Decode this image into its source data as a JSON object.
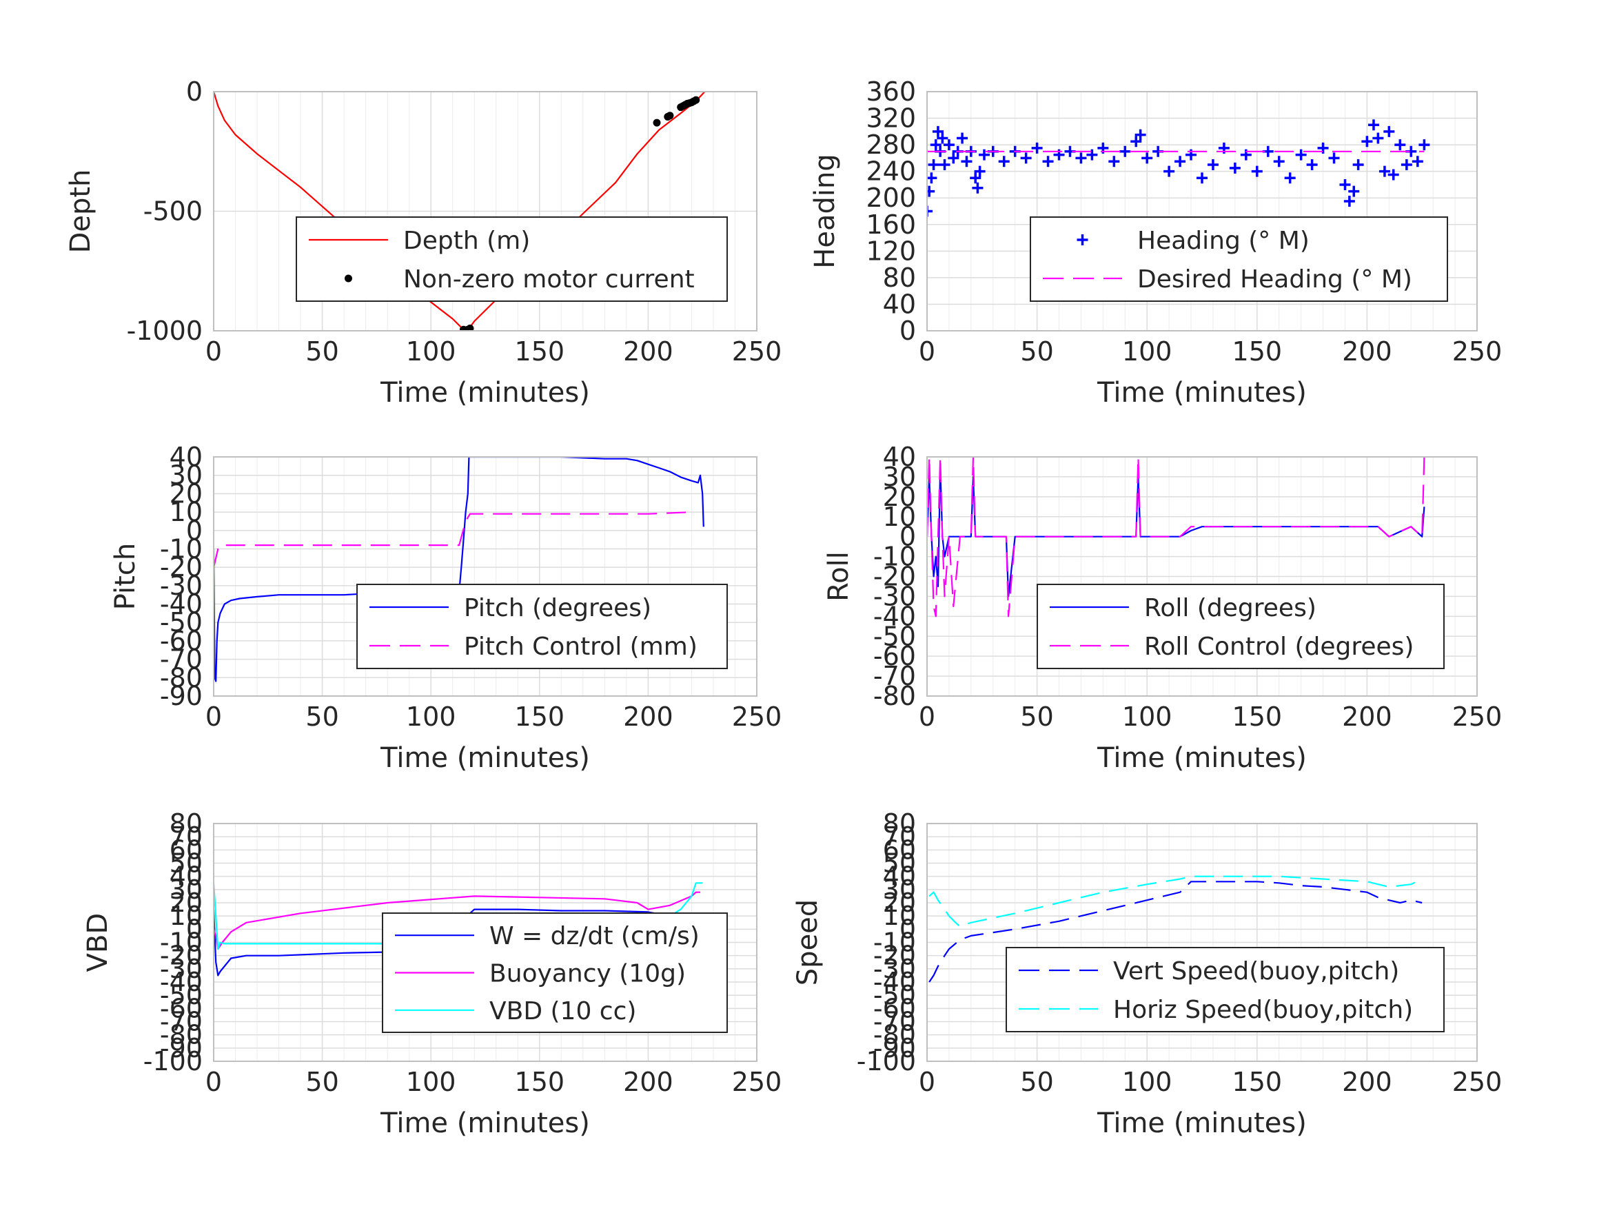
{
  "chart_data": [
    {
      "id": "depth",
      "type": "line",
      "xlabel": "Time (minutes)",
      "ylabel": "Depth",
      "xlim": [
        0,
        250
      ],
      "ylim": [
        -1000,
        0
      ],
      "xticks": [
        "0",
        "50",
        "100",
        "150",
        "200",
        "250"
      ],
      "yticks": [
        "-1000",
        "-500",
        "0"
      ],
      "grid": true,
      "legend": "lower-right",
      "series": [
        {
          "name": "Depth (m)",
          "style": "solid",
          "color": "#ff0000",
          "x": [
            0,
            2,
            5,
            10,
            20,
            40,
            60,
            80,
            100,
            110,
            115,
            118,
            120,
            130,
            150,
            170,
            185,
            195,
            205,
            215,
            222,
            226
          ],
          "y": [
            0,
            -60,
            -120,
            -180,
            -260,
            -400,
            -560,
            -720,
            -880,
            -950,
            -995,
            -985,
            -960,
            -870,
            -690,
            -510,
            -380,
            -260,
            -160,
            -90,
            -40,
            0
          ]
        },
        {
          "name": "Non-zero motor current",
          "style": "dots",
          "color": "#000000",
          "x": [
            115,
            116,
            117,
            118,
            204,
            209,
            210,
            215,
            216,
            217,
            218,
            219,
            220,
            221,
            222
          ],
          "y": [
            -995,
            -1000,
            -995,
            -990,
            -130,
            -105,
            -100,
            -65,
            -60,
            -55,
            -50,
            -48,
            -45,
            -40,
            -35
          ]
        }
      ]
    },
    {
      "id": "heading",
      "type": "scatter",
      "xlabel": "Time (minutes)",
      "ylabel": "Heading",
      "xlim": [
        0,
        250
      ],
      "ylim": [
        0,
        360
      ],
      "xticks": [
        "0",
        "50",
        "100",
        "150",
        "200",
        "250"
      ],
      "yticks": [
        "0",
        "40",
        "80",
        "120",
        "160",
        "200",
        "240",
        "280",
        "320",
        "360"
      ],
      "grid": true,
      "legend": "lower-right",
      "series": [
        {
          "name": "Heading (° M)",
          "style": "plus",
          "color": "#0000ff",
          "x": [
            0,
            1,
            2,
            3,
            4,
            5,
            6,
            7,
            8,
            10,
            12,
            14,
            16,
            18,
            20,
            22,
            23,
            24,
            26,
            30,
            35,
            40,
            45,
            50,
            55,
            60,
            65,
            70,
            75,
            80,
            85,
            90,
            95,
            97,
            100,
            105,
            110,
            115,
            120,
            125,
            130,
            135,
            140,
            145,
            150,
            155,
            160,
            165,
            170,
            175,
            180,
            185,
            190,
            192,
            194,
            196,
            200,
            203,
            205,
            208,
            210,
            212,
            215,
            218,
            220,
            223,
            226
          ],
          "y": [
            180,
            210,
            230,
            250,
            280,
            300,
            270,
            290,
            250,
            280,
            260,
            270,
            290,
            255,
            270,
            230,
            215,
            240,
            265,
            270,
            255,
            270,
            260,
            275,
            255,
            265,
            270,
            260,
            265,
            275,
            255,
            270,
            285,
            295,
            260,
            270,
            240,
            255,
            265,
            230,
            250,
            275,
            245,
            265,
            240,
            270,
            255,
            230,
            265,
            250,
            275,
            260,
            220,
            195,
            210,
            250,
            285,
            310,
            290,
            240,
            300,
            235,
            280,
            250,
            270,
            255,
            280
          ]
        },
        {
          "name": "Desired Heading (° M)",
          "style": "dashed",
          "color": "#ff00ff",
          "x": [
            0,
            226
          ],
          "y": [
            270,
            270
          ]
        }
      ]
    },
    {
      "id": "pitch",
      "type": "line",
      "xlabel": "Time (minutes)",
      "ylabel": "Pitch",
      "xlim": [
        0,
        250
      ],
      "ylim": [
        -90,
        40
      ],
      "xticks": [
        "0",
        "50",
        "100",
        "150",
        "200",
        "250"
      ],
      "yticks": [
        "-90",
        "-80",
        "-70",
        "-60",
        "-50",
        "-40",
        "-30",
        "-20",
        "-10",
        "0",
        "10",
        "20",
        "30",
        "40"
      ],
      "grid": true,
      "legend": "lower-right",
      "series": [
        {
          "name": "Pitch (degrees)",
          "style": "solid",
          "color": "#0000ff",
          "x": [
            0,
            0.5,
            1,
            1.5,
            2,
            3,
            5,
            8,
            12,
            20,
            30,
            45,
            60,
            75,
            90,
            105,
            113,
            114,
            115,
            116,
            117,
            117.5,
            120,
            140,
            160,
            180,
            190,
            195,
            200,
            205,
            210,
            215,
            220,
            223,
            224,
            225,
            225.5
          ],
          "y": [
            -10,
            -80,
            -82,
            -60,
            -50,
            -45,
            -40,
            -38,
            -37,
            -36,
            -35,
            -35,
            -35,
            -34,
            -34,
            -33,
            -33,
            -20,
            -5,
            10,
            20,
            40,
            40,
            40,
            40,
            39,
            39,
            38,
            36,
            34,
            32,
            29,
            27,
            26,
            30,
            20,
            2
          ]
        },
        {
          "name": "Pitch Control (mm)",
          "style": "dashed",
          "color": "#ff00ff",
          "x": [
            0,
            1,
            2,
            3,
            10,
            50,
            100,
            113,
            116,
            118,
            150,
            200,
            220
          ],
          "y": [
            -20,
            -15,
            -10,
            -8,
            -8,
            -8,
            -8,
            -8,
            5,
            9,
            9,
            9,
            10
          ]
        }
      ]
    },
    {
      "id": "roll",
      "type": "line",
      "xlabel": "Time (minutes)",
      "ylabel": "Roll",
      "xlim": [
        0,
        250
      ],
      "ylim": [
        -80,
        40
      ],
      "xticks": [
        "0",
        "50",
        "100",
        "150",
        "200",
        "250"
      ],
      "yticks": [
        "-80",
        "-70",
        "-60",
        "-50",
        "-40",
        "-30",
        "-20",
        "-10",
        "0",
        "10",
        "20",
        "30",
        "40"
      ],
      "grid": true,
      "legend": "lower-right",
      "series": [
        {
          "name": "Roll (degrees)",
          "style": "solid",
          "color": "#0000ff",
          "x": [
            0,
            1,
            2,
            3,
            4,
            5,
            6,
            7,
            8,
            10,
            15,
            20,
            21,
            22,
            25,
            30,
            36,
            37,
            40,
            50,
            60,
            70,
            80,
            90,
            95,
            96,
            97,
            100,
            110,
            115,
            120,
            125,
            130,
            140,
            150,
            160,
            170,
            180,
            190,
            195,
            200,
            205,
            210,
            220,
            225,
            226
          ],
          "y": [
            0,
            30,
            0,
            -20,
            -10,
            -25,
            35,
            0,
            -10,
            0,
            0,
            0,
            30,
            0,
            0,
            0,
            0,
            -30,
            0,
            0,
            0,
            0,
            0,
            0,
            0,
            30,
            0,
            0,
            0,
            0,
            3,
            5,
            5,
            5,
            5,
            5,
            5,
            5,
            5,
            5,
            5,
            5,
            0,
            5,
            0,
            15
          ]
        },
        {
          "name": "Roll Control (degrees)",
          "style": "dashed",
          "color": "#ff00ff",
          "x": [
            0,
            1,
            2,
            3,
            4,
            5,
            6,
            7,
            8,
            10,
            12,
            15,
            20,
            21,
            22,
            25,
            30,
            36,
            37,
            40,
            50,
            60,
            70,
            80,
            90,
            95,
            96,
            97,
            100,
            110,
            115,
            120,
            125,
            130,
            140,
            150,
            160,
            170,
            180,
            190,
            195,
            200,
            205,
            210,
            220,
            225,
            226
          ],
          "y": [
            0,
            40,
            0,
            -35,
            -40,
            0,
            40,
            0,
            -30,
            0,
            -35,
            0,
            0,
            40,
            0,
            0,
            0,
            0,
            -40,
            0,
            0,
            0,
            0,
            0,
            0,
            0,
            40,
            0,
            0,
            0,
            0,
            5,
            5,
            5,
            5,
            5,
            5,
            5,
            5,
            5,
            5,
            5,
            5,
            0,
            5,
            0,
            40
          ]
        }
      ]
    },
    {
      "id": "vbd",
      "type": "line",
      "xlabel": "Time (minutes)",
      "ylabel": "VBD",
      "xlim": [
        0,
        250
      ],
      "ylim": [
        -100,
        80
      ],
      "xticks": [
        "0",
        "50",
        "100",
        "150",
        "200",
        "250"
      ],
      "yticks": [
        "-100",
        "-90",
        "-80",
        "-70",
        "-60",
        "-50",
        "-40",
        "-30",
        "-20",
        "-10",
        "0",
        "10",
        "20",
        "30",
        "40",
        "50",
        "60",
        "70",
        "80"
      ],
      "grid": true,
      "legend": "lower-right",
      "series": [
        {
          "name": "W = dz/dt (cm/s)",
          "style": "solid",
          "color": "#0000ff",
          "x": [
            0,
            1,
            2,
            3,
            5,
            8,
            15,
            30,
            60,
            90,
            110,
            113,
            114,
            115,
            116,
            118,
            120,
            140,
            160,
            180,
            200,
            210,
            220,
            224,
            225
          ],
          "y": [
            15,
            -25,
            -35,
            -32,
            -28,
            -22,
            -20,
            -20,
            -18,
            -17,
            -17,
            -16,
            -10,
            0,
            10,
            12,
            15,
            15,
            14,
            14,
            13,
            10,
            8,
            12,
            2
          ]
        },
        {
          "name": "Buoyancy (10g)",
          "style": "solid",
          "color": "#ff00ff",
          "x": [
            0,
            1,
            2,
            4,
            8,
            15,
            40,
            80,
            120,
            150,
            180,
            195,
            200,
            210,
            220,
            222,
            224
          ],
          "y": [
            0,
            -5,
            -15,
            -10,
            -2,
            5,
            12,
            20,
            25,
            24,
            23,
            20,
            15,
            18,
            25,
            28,
            28
          ]
        },
        {
          "name": "VBD (10 cc)",
          "style": "solid",
          "color": "#00ffff",
          "x": [
            0,
            2,
            3,
            5,
            10,
            50,
            100,
            115,
            120,
            200,
            210,
            215,
            220,
            222,
            225
          ],
          "y": [
            35,
            -15,
            -10,
            -11,
            -11,
            -11,
            -11,
            -11,
            9,
            9,
            10,
            15,
            25,
            35,
            35
          ]
        }
      ]
    },
    {
      "id": "speed",
      "type": "line",
      "xlabel": "Time (minutes)",
      "ylabel": "Speed",
      "xlim": [
        0,
        250
      ],
      "ylim": [
        -100,
        80
      ],
      "xticks": [
        "0",
        "50",
        "100",
        "150",
        "200",
        "250"
      ],
      "yticks": [
        "-100",
        "-90",
        "-80",
        "-70",
        "-60",
        "-50",
        "-40",
        "-30",
        "-20",
        "-10",
        "0",
        "10",
        "20",
        "30",
        "40",
        "50",
        "60",
        "70",
        "80"
      ],
      "grid": true,
      "legend": "lower-right",
      "series": [
        {
          "name": "Vert Speed(buoy,pitch)",
          "style": "dashed",
          "color": "#0000ff",
          "x": [
            1,
            3,
            5,
            8,
            10,
            15,
            20,
            40,
            60,
            80,
            100,
            115,
            120,
            130,
            140,
            150,
            160,
            170,
            180,
            190,
            200,
            205,
            210,
            215,
            220,
            225
          ],
          "y": [
            -40,
            -35,
            -28,
            -20,
            -15,
            -8,
            -5,
            0,
            6,
            14,
            22,
            28,
            36,
            36,
            36,
            36,
            35,
            33,
            32,
            30,
            28,
            24,
            22,
            20,
            22,
            20
          ]
        },
        {
          "name": "Horiz Speed(buoy,pitch)",
          "style": "dashed",
          "color": "#00ffff",
          "x": [
            1,
            3,
            5,
            8,
            10,
            13,
            15,
            20,
            40,
            60,
            80,
            100,
            115,
            120,
            130,
            140,
            150,
            160,
            170,
            180,
            190,
            200,
            205,
            210,
            215,
            220,
            225
          ],
          "y": [
            25,
            28,
            22,
            15,
            10,
            5,
            2,
            5,
            12,
            20,
            28,
            34,
            38,
            40,
            40,
            40,
            40,
            40,
            39,
            38,
            37,
            36,
            34,
            32,
            33,
            34,
            38
          ]
        }
      ]
    }
  ]
}
